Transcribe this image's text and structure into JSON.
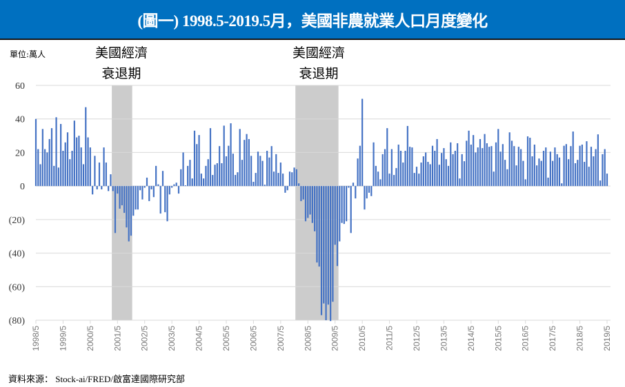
{
  "header": {
    "title": "(圖一) 1998.5-2019.5月，美國非農就業人口月度變化"
  },
  "unit_label": "單位:萬人",
  "recession_labels": [
    {
      "line1": "美國經濟",
      "line2": "衰退期"
    },
    {
      "line1": "美國經濟",
      "line2": "衰退期"
    }
  ],
  "source": "資料來源： Stock-ai/FRED/啟富達國際研究部",
  "colors": {
    "header": "#0070C0",
    "bar": "#4472C4",
    "recession": "#CCCCCC",
    "grid": "#D9D9D9"
  },
  "chart_data": {
    "type": "bar",
    "title": "(圖一) 1998.5-2019.5月，美國非農就業人口月度變化",
    "ylabel": "單位:萬人",
    "xlabel": "",
    "start": "1998/5",
    "end": "2019/5",
    "ylim": [
      -80,
      60
    ],
    "yticks": [
      60,
      40,
      20,
      0,
      -20,
      -40,
      -60,
      -80
    ],
    "ytick_labels": [
      "60",
      "40",
      "20",
      "0",
      "(20)",
      "(40)",
      "(60)",
      "(80)"
    ],
    "xtick_labels": [
      "1998/5",
      "1999/5",
      "2000/5",
      "2001/5",
      "2002/5",
      "2003/5",
      "2004/5",
      "2005/5",
      "2006/5",
      "2007/5",
      "2008/5",
      "2009/5",
      "2010/5",
      "2011/5",
      "2012/5",
      "2013/5",
      "2014/5",
      "2015/5",
      "2016/5",
      "2017/5",
      "2018/5",
      "2019/5"
    ],
    "grid": true,
    "recessions": [
      {
        "start": "2001/3",
        "end": "2001/11"
      },
      {
        "start": "2007/12",
        "end": "2009/6"
      }
    ],
    "values": [
      40,
      22,
      13,
      34,
      22,
      20,
      28,
      34.5,
      12,
      41,
      11,
      37,
      21,
      26,
      32,
      16,
      21,
      39,
      29,
      30,
      23,
      13,
      47,
      29,
      23,
      -5,
      18,
      -2,
      14,
      -2,
      23,
      14,
      -3,
      7,
      -3,
      -28,
      -4.5,
      -13.5,
      -11.5,
      -16,
      -24.7,
      -33,
      -29.6,
      -17.7,
      -14,
      -14,
      -2.5,
      -8,
      -1,
      5,
      -9,
      -2,
      -6.6,
      12,
      1,
      -16.4,
      9,
      -15.6,
      -21,
      -5,
      -1,
      1,
      2,
      -4.5,
      10,
      20,
      0.4,
      12,
      15.6,
      4.5,
      33,
      25,
      30.4,
      7.4,
      4.5,
      12,
      16,
      34.5,
      6.6,
      12.7,
      13.6,
      23.8,
      13.6,
      36,
      17.7,
      24,
      37.4,
      19.3,
      6.6,
      8.2,
      34,
      15.6,
      27.5,
      31,
      28,
      18,
      2.5,
      7.8,
      20.5,
      18,
      15,
      0.8,
      21,
      17,
      23.8,
      8.6,
      19,
      7.8,
      14,
      7.4,
      -4,
      -2.5,
      8.6,
      8.2,
      11,
      10,
      1.6,
      -9,
      -8,
      -21,
      -19,
      -17,
      -22,
      -27,
      -45.6,
      -48,
      -77,
      -70,
      -80,
      -70.7,
      -80.5,
      -69,
      -35,
      -47.7,
      -33,
      -22,
      -22.6,
      -21,
      -1,
      -28,
      2,
      -7.4,
      16.4,
      24,
      52,
      -14,
      -7.4,
      -4,
      -6,
      26,
      12,
      8.6,
      4,
      19,
      22,
      34.5,
      7.4,
      22,
      6.6,
      10.7,
      24.7,
      21,
      14,
      21,
      35.8,
      23.4,
      23,
      7.8,
      11.5,
      7.4,
      14,
      17.7,
      20,
      14.4,
      13,
      24,
      21,
      28,
      12.7,
      19.7,
      22.6,
      16,
      12,
      26,
      19,
      21,
      25.5,
      4.5,
      19,
      14.8,
      27,
      33,
      24.7,
      30.4,
      20,
      23,
      28,
      22.6,
      31,
      25.5,
      23.4,
      23.8,
      8.6,
      26,
      34,
      20.5,
      25,
      15.6,
      10,
      32,
      27,
      23.8,
      12.3,
      23.4,
      22,
      15,
      4,
      29.6,
      28.8,
      17.7,
      24.7,
      12.3,
      16.4,
      15,
      21,
      23,
      5,
      20.5,
      15,
      23,
      19,
      17,
      1.6,
      24,
      25,
      16,
      23.8,
      32.5,
      13.6,
      15.6,
      24,
      24.7,
      14.4,
      26.7,
      11.5,
      23.4,
      17.7,
      22,
      30.8,
      3.3,
      19,
      22,
      7.4
    ]
  }
}
